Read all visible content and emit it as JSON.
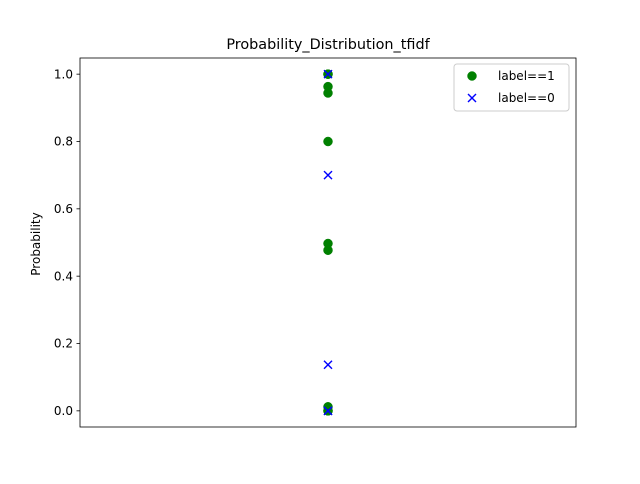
{
  "chart_data": {
    "type": "scatter",
    "title": "Probability_Distribution_tfidf",
    "xlabel": "",
    "ylabel": "Probability",
    "ylim": [
      -0.048,
      1.048
    ],
    "yticks": [
      0.0,
      0.2,
      0.4,
      0.6,
      0.8,
      1.0
    ],
    "ytick_labels": [
      "0.0",
      "0.2",
      "0.4",
      "0.6",
      "0.8",
      "1.0"
    ],
    "x_ticks_visible": false,
    "grid": false,
    "legend_position": "top-right",
    "series": [
      {
        "name": "label==1",
        "marker": "circle",
        "color": "#008000",
        "values": [
          1.0,
          1.0,
          0.963,
          0.944,
          0.8,
          0.497,
          0.477,
          0.012,
          0.0,
          0.0
        ]
      },
      {
        "name": "label==0",
        "marker": "x",
        "color": "#0000ff",
        "values": [
          1.0,
          0.7,
          0.137,
          0.0,
          0.0
        ]
      }
    ]
  }
}
